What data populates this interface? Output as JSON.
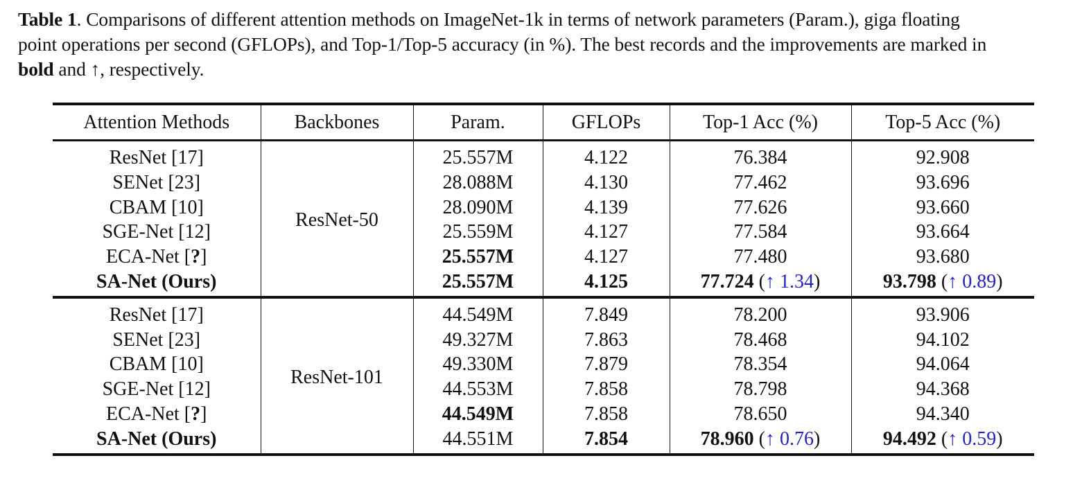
{
  "caption": {
    "label": "Table 1",
    "line1_rest": ". Comparisons of different attention methods on ImageNet-1k in terms of network parameters (Param.), giga floating",
    "line2": "point operations per second (GFLOPs), and Top-1/Top-5 accuracy (in %). The best records and the improvements are marked in",
    "line3_bold": "bold",
    "line3_rest": " and ↑, respectively."
  },
  "table": {
    "headers": [
      "Attention Methods",
      "Backbones",
      "Param.",
      "GFLOPs",
      "Top-1 Acc (%)",
      "Top-5 Acc (%)"
    ],
    "groups": [
      {
        "backbone": "ResNet-50",
        "rows": [
          {
            "method": "ResNet [17]",
            "param": "25.557M",
            "gflops": "4.122",
            "top1": "76.384",
            "top5": "92.908"
          },
          {
            "method": "SENet [23]",
            "param": "28.088M",
            "gflops": "4.130",
            "top1": "77.462",
            "top5": "93.696"
          },
          {
            "method": "CBAM [10]",
            "param": "28.090M",
            "gflops": "4.139",
            "top1": "77.626",
            "top5": "93.660"
          },
          {
            "method": "SGE-Net [12]",
            "param": "25.559M",
            "gflops": "4.127",
            "top1": "77.584",
            "top5": "93.664"
          },
          {
            "method_prefix": "ECA-Net [",
            "method_mark": "?",
            "method_suffix": "]",
            "param": "25.557M",
            "gflops": "4.127",
            "top1": "77.480",
            "top5": "93.680"
          },
          {
            "method": "SA-Net (Ours)",
            "param": "25.557M",
            "gflops": "4.125",
            "top1": "77.724",
            "top1_improve": "↑ 1.34",
            "top5": "93.798",
            "top5_improve": "↑ 0.89"
          }
        ]
      },
      {
        "backbone": "ResNet-101",
        "rows": [
          {
            "method": "ResNet [17]",
            "param": "44.549M",
            "gflops": "7.849",
            "top1": "78.200",
            "top5": "93.906"
          },
          {
            "method": "SENet [23]",
            "param": "49.327M",
            "gflops": "7.863",
            "top1": "78.468",
            "top5": "94.102"
          },
          {
            "method": "CBAM [10]",
            "param": "49.330M",
            "gflops": "7.879",
            "top1": "78.354",
            "top5": "94.064"
          },
          {
            "method": "SGE-Net [12]",
            "param": "44.553M",
            "gflops": "7.858",
            "top1": "78.798",
            "top5": "94.368"
          },
          {
            "method_prefix": "ECA-Net [",
            "method_mark": "?",
            "method_suffix": "]",
            "param": "44.549M",
            "gflops": "7.858",
            "top1": "78.650",
            "top5": "94.340"
          },
          {
            "method": "SA-Net (Ours)",
            "param": "44.551M",
            "gflops": "7.854",
            "top1": "78.960",
            "top1_improve": "↑ 0.76",
            "top5": "94.492",
            "top5_improve": "↑ 0.59"
          }
        ]
      }
    ]
  }
}
